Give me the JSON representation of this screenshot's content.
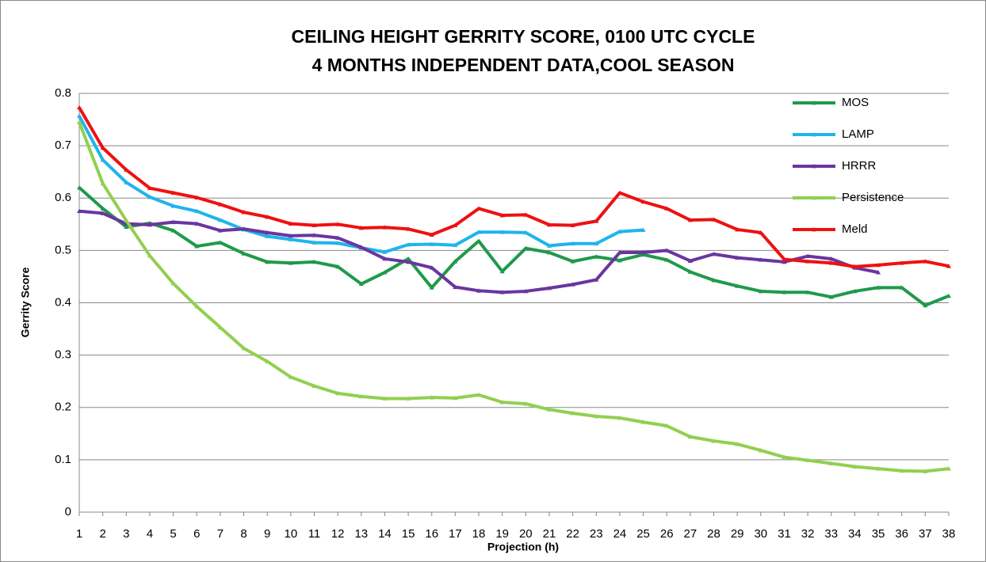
{
  "chart_data": {
    "type": "line",
    "title": [
      "CEILING HEIGHT GERRITY SCORE, 0100 UTC CYCLE",
      "4 MONTHS INDEPENDENT DATA,COOL SEASON"
    ],
    "x_label": "Projection (h)",
    "y_label": "Gerrity Score",
    "x": [
      1,
      2,
      3,
      4,
      5,
      6,
      7,
      8,
      9,
      10,
      11,
      12,
      13,
      14,
      15,
      16,
      17,
      18,
      19,
      20,
      21,
      22,
      23,
      24,
      25,
      26,
      27,
      28,
      29,
      30,
      31,
      32,
      33,
      34,
      35,
      36,
      37,
      38
    ],
    "xlim": [
      1,
      38
    ],
    "ylim": [
      0,
      0.8
    ],
    "yticks": [
      0,
      0.1,
      0.2,
      0.3,
      0.4,
      0.5,
      0.6,
      0.7,
      0.8
    ],
    "grid": true,
    "legend": "upper right",
    "series": [
      {
        "name": "MOS",
        "color": "#1e9a4a",
        "values": [
          0.62,
          0.58,
          0.545,
          0.552,
          0.538,
          0.508,
          0.515,
          0.494,
          0.478,
          0.476,
          0.478,
          0.469,
          0.436,
          0.458,
          0.484,
          0.429,
          0.479,
          0.518,
          0.46,
          0.504,
          0.496,
          0.479,
          0.488,
          0.481,
          0.492,
          0.482,
          0.459,
          0.443,
          0.432,
          0.422,
          0.42,
          0.42,
          0.411,
          0.422,
          0.429,
          0.429,
          0.395,
          0.413
        ]
      },
      {
        "name": "LAMP",
        "color": "#1fb4ec",
        "values": [
          0.757,
          0.673,
          0.63,
          0.602,
          0.585,
          0.575,
          0.558,
          0.54,
          0.527,
          0.521,
          0.515,
          0.514,
          0.505,
          0.497,
          0.511,
          0.512,
          0.51,
          0.535,
          0.535,
          0.534,
          0.509,
          0.513,
          0.513,
          0.536,
          0.539,
          null,
          null,
          null,
          null,
          null,
          null,
          null,
          null,
          null,
          null,
          null,
          null,
          null
        ]
      },
      {
        "name": "HRRR",
        "color": "#6a35a0",
        "values": [
          0.575,
          0.571,
          0.551,
          0.549,
          0.554,
          0.551,
          0.538,
          0.541,
          0.534,
          0.528,
          0.529,
          0.524,
          0.506,
          0.484,
          0.478,
          0.467,
          0.43,
          0.423,
          0.42,
          0.422,
          0.428,
          0.435,
          0.444,
          0.496,
          0.496,
          0.5,
          0.48,
          0.493,
          0.486,
          0.482,
          0.478,
          0.489,
          0.484,
          0.467,
          0.458,
          null,
          null,
          null
        ]
      },
      {
        "name": "Persistence",
        "color": "#92cf50",
        "values": [
          0.745,
          0.628,
          0.557,
          0.49,
          0.437,
          0.393,
          0.353,
          0.313,
          0.288,
          0.258,
          0.241,
          0.227,
          0.221,
          0.217,
          0.217,
          0.219,
          0.218,
          0.224,
          0.21,
          0.207,
          0.196,
          0.189,
          0.183,
          0.18,
          0.172,
          0.165,
          0.144,
          0.136,
          0.13,
          0.118,
          0.105,
          0.099,
          0.093,
          0.087,
          0.083,
          0.079,
          0.078,
          0.083
        ]
      },
      {
        "name": "Meld",
        "color": "#ee1111",
        "values": [
          0.773,
          0.696,
          0.654,
          0.619,
          0.61,
          0.601,
          0.588,
          0.573,
          0.564,
          0.551,
          0.548,
          0.55,
          0.543,
          0.544,
          0.541,
          0.53,
          0.548,
          0.58,
          0.567,
          0.568,
          0.549,
          0.548,
          0.556,
          0.61,
          0.593,
          0.58,
          0.558,
          0.559,
          0.54,
          0.534,
          0.483,
          0.479,
          0.476,
          0.469,
          0.472,
          0.476,
          0.479,
          0.47
        ]
      }
    ]
  }
}
